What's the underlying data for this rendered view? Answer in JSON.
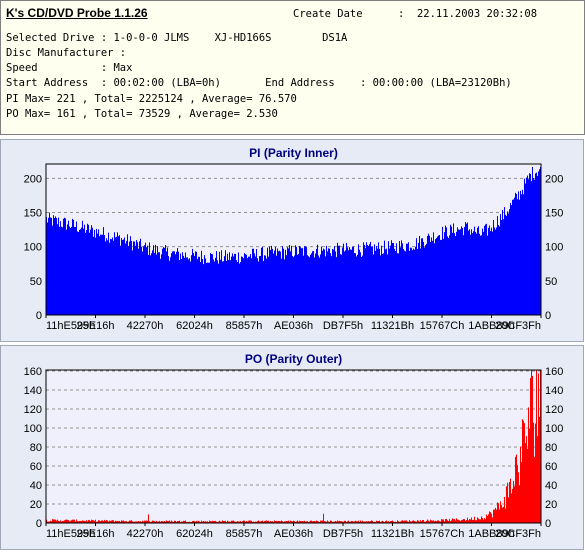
{
  "header": {
    "app_title": "K's CD/DVD Probe 1.1.26",
    "create_date_label": "Create Date",
    "create_date_value": ":  22.11.2003 20:32:08",
    "lines": [
      "Selected Drive : 1-0-0-0 JLMS    XJ-HD166S        DS1A",
      "Disc Manufacturer :",
      "Speed          : Max",
      "Start Address  : 00:02:00 (LBA=0h)       End Address    : 00:00:00 (LBA=23120Bh)",
      "PI Max= 221 , Total= 2225124 , Average= 76.570",
      "PO Max= 161 , Total= 73529 , Average= 2.530"
    ]
  },
  "colors": {
    "pi": "#0000ff",
    "po": "#ff0000",
    "plot_bg": "#f0f0fc",
    "panel_bg": "#e6ebf5",
    "title": "#000080"
  },
  "chart_data": [
    {
      "type": "area",
      "title": "PI (Parity Inner)",
      "x_tick_labels": [
        "11hE599h",
        "25E16h",
        "42270h",
        "62024h",
        "85857h",
        "AE036h",
        "DB7F5h",
        "11321Bh",
        "15767Ch",
        "1ABB89h",
        "20CF3Fh"
      ],
      "y_ticks": [
        0,
        50,
        100,
        150,
        200
      ],
      "ylim": [
        0,
        221
      ],
      "grid": true,
      "series": [
        {
          "color": "#0000ff",
          "profile_x": [
            0,
            0.05,
            0.1,
            0.15,
            0.2,
            0.25,
            0.3,
            0.35,
            0.4,
            0.45,
            0.5,
            0.55,
            0.6,
            0.65,
            0.7,
            0.75,
            0.8,
            0.85,
            0.88,
            0.9,
            0.93,
            0.96,
            0.98,
            1.0
          ],
          "profile_y": [
            140,
            132,
            122,
            112,
            98,
            90,
            86,
            84,
            86,
            90,
            93,
            94,
            95,
            96,
            99,
            105,
            120,
            128,
            118,
            128,
            150,
            180,
            205,
            215
          ]
        }
      ]
    },
    {
      "type": "area",
      "title": "PO (Parity Outer)",
      "x_tick_labels": [
        "11hE599h",
        "25E16h",
        "42270h",
        "62024h",
        "85857h",
        "AE036h",
        "DB7F5h",
        "11321Bh",
        "15767Ch",
        "1ABB89h",
        "20CF3Fh"
      ],
      "y_ticks": [
        0,
        20,
        40,
        60,
        80,
        100,
        120,
        140,
        160
      ],
      "ylim": [
        0,
        161
      ],
      "grid": true,
      "series": [
        {
          "color": "#ff0000",
          "profile_x": [
            0,
            0.1,
            0.2,
            0.3,
            0.4,
            0.5,
            0.6,
            0.7,
            0.8,
            0.85,
            0.88,
            0.9,
            0.92,
            0.94,
            0.96,
            0.98,
            1.0
          ],
          "profile_y": [
            3,
            2.5,
            2,
            2,
            2,
            2,
            2,
            2,
            3,
            4,
            6,
            10,
            20,
            40,
            75,
            120,
            158
          ]
        }
      ]
    }
  ]
}
